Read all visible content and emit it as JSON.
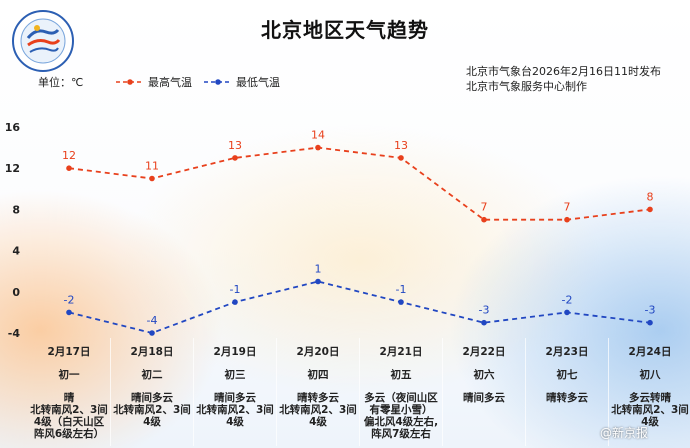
{
  "header": {
    "title": "北京地区天气趋势",
    "unit_label": "单位：℃",
    "source_line1": "北京市气象台2026年2月16日11时发布",
    "source_line2": "北京市气象服务中心制作",
    "watermark": "@新京报"
  },
  "colors": {
    "high": "#e8401c",
    "low": "#2147c2"
  },
  "chart_data": {
    "type": "line",
    "categories": [
      "2月17日",
      "2月18日",
      "2月19日",
      "2月20日",
      "2月21日",
      "2月22日",
      "2月23日",
      "2月24日"
    ],
    "y_ticks": [
      -4,
      0,
      4,
      8,
      12,
      16
    ],
    "ylim": [
      -4,
      16
    ],
    "legend_position": "top",
    "series": [
      {
        "name": "最高气温",
        "values": [
          12,
          11,
          13,
          14,
          13,
          7,
          7,
          8
        ]
      },
      {
        "name": "最低气温",
        "values": [
          -2,
          -4,
          -1,
          1,
          -1,
          -3,
          -2,
          -3
        ]
      }
    ]
  },
  "days": [
    {
      "date": "2月17日",
      "lunar": "初一",
      "desc": [
        "晴",
        "北转南风2、3间",
        "4级（白天山区",
        "阵风6级左右）"
      ]
    },
    {
      "date": "2月18日",
      "lunar": "初二",
      "desc": [
        "晴间多云",
        "北转南风2、3间",
        "4级"
      ]
    },
    {
      "date": "2月19日",
      "lunar": "初三",
      "desc": [
        "晴间多云",
        "北转南风2、3间",
        "4级"
      ]
    },
    {
      "date": "2月20日",
      "lunar": "初四",
      "desc": [
        "晴转多云",
        "北转南风2、3间",
        "4级"
      ]
    },
    {
      "date": "2月21日",
      "lunar": "初五",
      "desc": [
        "多云（夜间山区",
        "有零星小雪）",
        "偏北风4级左右,",
        "阵风7级左右"
      ]
    },
    {
      "date": "2月22日",
      "lunar": "初六",
      "desc": [
        "晴间多云"
      ]
    },
    {
      "date": "2月23日",
      "lunar": "初七",
      "desc": [
        "晴转多云"
      ]
    },
    {
      "date": "2月24日",
      "lunar": "初八",
      "desc": [
        "多云转晴",
        "北转南风2、3间",
        "4级"
      ]
    }
  ]
}
